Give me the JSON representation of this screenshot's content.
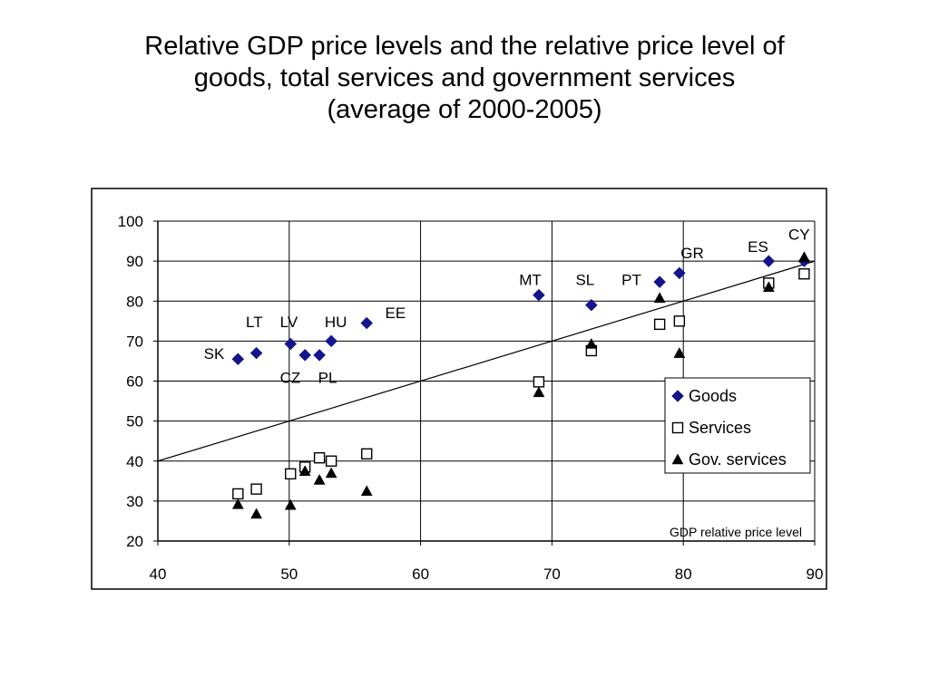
{
  "slide": {
    "title_lines": [
      "Relative GDP price levels and the relative price level of",
      "goods, total services and government services",
      "(average of 2000-2005)"
    ]
  },
  "chart_data": {
    "type": "scatter",
    "title": "Relative GDP price levels and the relative price level of goods, total services and government services (average of 2000-2005)",
    "xlabel": "GDP relative price level",
    "ylabel": "",
    "xlim": [
      40,
      90
    ],
    "ylim": [
      20,
      100
    ],
    "xticks": [
      "40",
      "50",
      "60",
      "70",
      "80",
      "90"
    ],
    "yticks": [
      "20",
      "30",
      "40",
      "50",
      "60",
      "70",
      "80",
      "90",
      "100"
    ],
    "grid": "horizontal and vertical gridlines",
    "legend_position": "right, lower half",
    "countries": [
      "SK",
      "LT",
      "LV",
      "CZ",
      "PL",
      "HU",
      "EE",
      "MT",
      "SL",
      "PT",
      "GR",
      "ES",
      "CY"
    ],
    "x": [
      46.1,
      47.5,
      50.1,
      51.2,
      52.3,
      53.2,
      55.9,
      69.0,
      73.0,
      78.2,
      79.7,
      86.5,
      89.2
    ],
    "series": [
      {
        "name": "Goods",
        "marker": "diamond",
        "color": "#14148c",
        "values": [
          65.5,
          67.0,
          69.3,
          66.5,
          66.5,
          70.0,
          74.5,
          81.5,
          79.0,
          84.8,
          87.0,
          90.0,
          90.0
        ]
      },
      {
        "name": "Services",
        "marker": "square",
        "color": "#000000",
        "values": [
          31.8,
          33.0,
          36.8,
          38.5,
          40.8,
          40.0,
          41.8,
          59.8,
          67.6,
          74.2,
          75.0,
          84.5,
          86.8
        ]
      },
      {
        "name": "Gov. services",
        "marker": "triangle",
        "color": "#000000",
        "values": [
          29.2,
          26.8,
          29.0,
          37.5,
          35.3,
          37.0,
          32.5,
          57.2,
          69.3,
          80.8,
          67.0,
          83.5,
          91.0
        ]
      }
    ],
    "reference_line": {
      "x": [
        40,
        90
      ],
      "y": [
        40,
        90
      ]
    },
    "country_labels": [
      {
        "text": "SK",
        "x": 43.5,
        "y": 65.5
      },
      {
        "text": "LT",
        "x": 46.7,
        "y": 73.5
      },
      {
        "text": "LV",
        "x": 49.3,
        "y": 73.5
      },
      {
        "text": "HU",
        "x": 52.7,
        "y": 73.5
      },
      {
        "text": "EE",
        "x": 57.3,
        "y": 75.8
      },
      {
        "text": "CZ",
        "x": 49.3,
        "y": 59.5
      },
      {
        "text": "PL",
        "x": 52.2,
        "y": 59.5
      },
      {
        "text": "MT",
        "x": 67.5,
        "y": 84.0
      },
      {
        "text": "SL",
        "x": 71.8,
        "y": 84.0
      },
      {
        "text": "PT",
        "x": 75.3,
        "y": 84.0
      },
      {
        "text": "GR",
        "x": 79.8,
        "y": 90.7
      },
      {
        "text": "ES",
        "x": 84.9,
        "y": 92.3
      },
      {
        "text": "CY",
        "x": 88.0,
        "y": 95.3
      }
    ]
  }
}
